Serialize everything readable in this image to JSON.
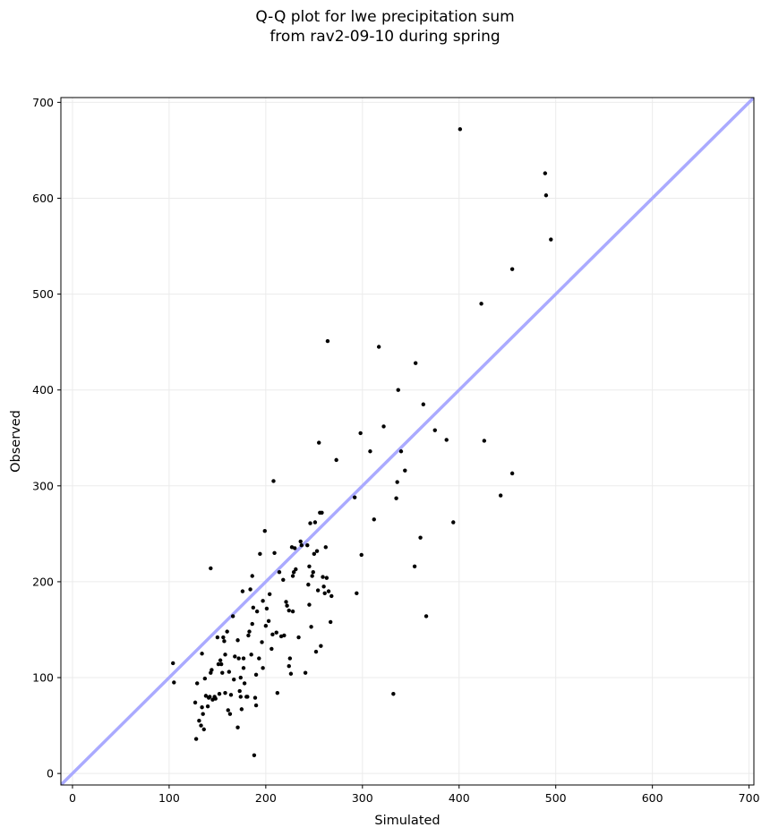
{
  "chart_data": {
    "type": "scatter",
    "title": [
      "Q-Q plot for lwe precipitation sum",
      "from rav2-09-10 during spring"
    ],
    "xlabel": "Simulated",
    "ylabel": "Observed",
    "xlim": [
      -12,
      705
    ],
    "ylim": [
      -12,
      705
    ],
    "xticks": [
      0,
      100,
      200,
      300,
      400,
      500,
      600,
      700
    ],
    "yticks": [
      0,
      100,
      200,
      300,
      400,
      500,
      600,
      700
    ],
    "grid": true,
    "reference_line": {
      "from": [
        -12,
        -12
      ],
      "to": [
        705,
        705
      ],
      "color": "#aaaaff"
    },
    "point_color": "#000000",
    "points": [
      [
        104,
        115
      ],
      [
        105,
        95
      ],
      [
        127,
        74
      ],
      [
        128,
        36
      ],
      [
        129,
        94
      ],
      [
        131,
        55
      ],
      [
        133,
        50
      ],
      [
        134,
        125
      ],
      [
        134,
        69
      ],
      [
        135,
        62
      ],
      [
        136,
        46
      ],
      [
        137,
        99
      ],
      [
        138,
        81
      ],
      [
        140,
        70
      ],
      [
        141,
        79
      ],
      [
        142,
        80
      ],
      [
        143,
        214
      ],
      [
        143,
        105
      ],
      [
        144,
        108
      ],
      [
        145,
        77
      ],
      [
        147,
        80
      ],
      [
        148,
        78
      ],
      [
        150,
        142
      ],
      [
        151,
        114
      ],
      [
        152,
        83
      ],
      [
        153,
        118
      ],
      [
        154,
        114
      ],
      [
        155,
        105
      ],
      [
        156,
        142
      ],
      [
        157,
        138
      ],
      [
        158,
        84
      ],
      [
        158,
        124
      ],
      [
        160,
        148
      ],
      [
        161,
        66
      ],
      [
        162,
        106
      ],
      [
        163,
        62
      ],
      [
        164,
        82
      ],
      [
        166,
        164
      ],
      [
        167,
        98
      ],
      [
        168,
        122
      ],
      [
        171,
        139
      ],
      [
        171,
        48
      ],
      [
        172,
        120
      ],
      [
        173,
        86
      ],
      [
        174,
        100
      ],
      [
        174,
        80
      ],
      [
        175,
        67
      ],
      [
        176,
        190
      ],
      [
        177,
        120
      ],
      [
        177,
        110
      ],
      [
        178,
        94
      ],
      [
        180,
        80
      ],
      [
        181,
        80
      ],
      [
        182,
        144
      ],
      [
        183,
        148
      ],
      [
        184,
        192
      ],
      [
        185,
        124
      ],
      [
        186,
        206
      ],
      [
        186,
        156
      ],
      [
        187,
        173
      ],
      [
        188,
        19
      ],
      [
        189,
        79
      ],
      [
        190,
        103
      ],
      [
        190,
        71
      ],
      [
        191,
        169
      ],
      [
        193,
        120
      ],
      [
        194,
        229
      ],
      [
        196,
        137
      ],
      [
        197,
        110
      ],
      [
        197,
        180
      ],
      [
        199,
        253
      ],
      [
        200,
        154
      ],
      [
        201,
        172
      ],
      [
        203,
        159
      ],
      [
        204,
        187
      ],
      [
        206,
        130
      ],
      [
        207,
        145
      ],
      [
        208,
        305
      ],
      [
        209,
        230
      ],
      [
        211,
        147
      ],
      [
        212,
        84
      ],
      [
        214,
        210
      ],
      [
        216,
        143
      ],
      [
        218,
        202
      ],
      [
        219,
        144
      ],
      [
        221,
        179
      ],
      [
        222,
        175
      ],
      [
        224,
        170
      ],
      [
        224,
        112
      ],
      [
        225,
        120
      ],
      [
        226,
        104
      ],
      [
        227,
        236
      ],
      [
        228,
        169
      ],
      [
        228,
        206
      ],
      [
        229,
        210
      ],
      [
        230,
        235
      ],
      [
        231,
        213
      ],
      [
        234,
        142
      ],
      [
        236,
        242
      ],
      [
        237,
        238
      ],
      [
        241,
        105
      ],
      [
        243,
        238
      ],
      [
        244,
        197
      ],
      [
        245,
        216
      ],
      [
        245,
        176
      ],
      [
        246,
        261
      ],
      [
        247,
        153
      ],
      [
        248,
        206
      ],
      [
        249,
        210
      ],
      [
        250,
        229
      ],
      [
        251,
        262
      ],
      [
        252,
        127
      ],
      [
        253,
        232
      ],
      [
        254,
        191
      ],
      [
        255,
        345
      ],
      [
        256,
        272
      ],
      [
        257,
        133
      ],
      [
        258,
        272
      ],
      [
        259,
        205
      ],
      [
        260,
        195
      ],
      [
        261,
        188
      ],
      [
        262,
        236
      ],
      [
        263,
        204
      ],
      [
        264,
        451
      ],
      [
        265,
        190
      ],
      [
        267,
        158
      ],
      [
        268,
        185
      ],
      [
        273,
        327
      ],
      [
        292,
        288
      ],
      [
        294,
        188
      ],
      [
        298,
        355
      ],
      [
        299,
        228
      ],
      [
        308,
        336
      ],
      [
        312,
        265
      ],
      [
        317,
        445
      ],
      [
        322,
        362
      ],
      [
        332,
        83
      ],
      [
        335,
        287
      ],
      [
        336,
        304
      ],
      [
        337,
        400
      ],
      [
        340,
        336
      ],
      [
        344,
        316
      ],
      [
        354,
        216
      ],
      [
        355,
        428
      ],
      [
        360,
        246
      ],
      [
        363,
        385
      ],
      [
        366,
        164
      ],
      [
        375,
        358
      ],
      [
        387,
        348
      ],
      [
        394,
        262
      ],
      [
        401,
        672
      ],
      [
        423,
        490
      ],
      [
        426,
        347
      ],
      [
        443,
        290
      ],
      [
        455,
        526
      ],
      [
        455,
        313
      ],
      [
        489,
        626
      ],
      [
        490,
        603
      ],
      [
        495,
        557
      ]
    ]
  }
}
